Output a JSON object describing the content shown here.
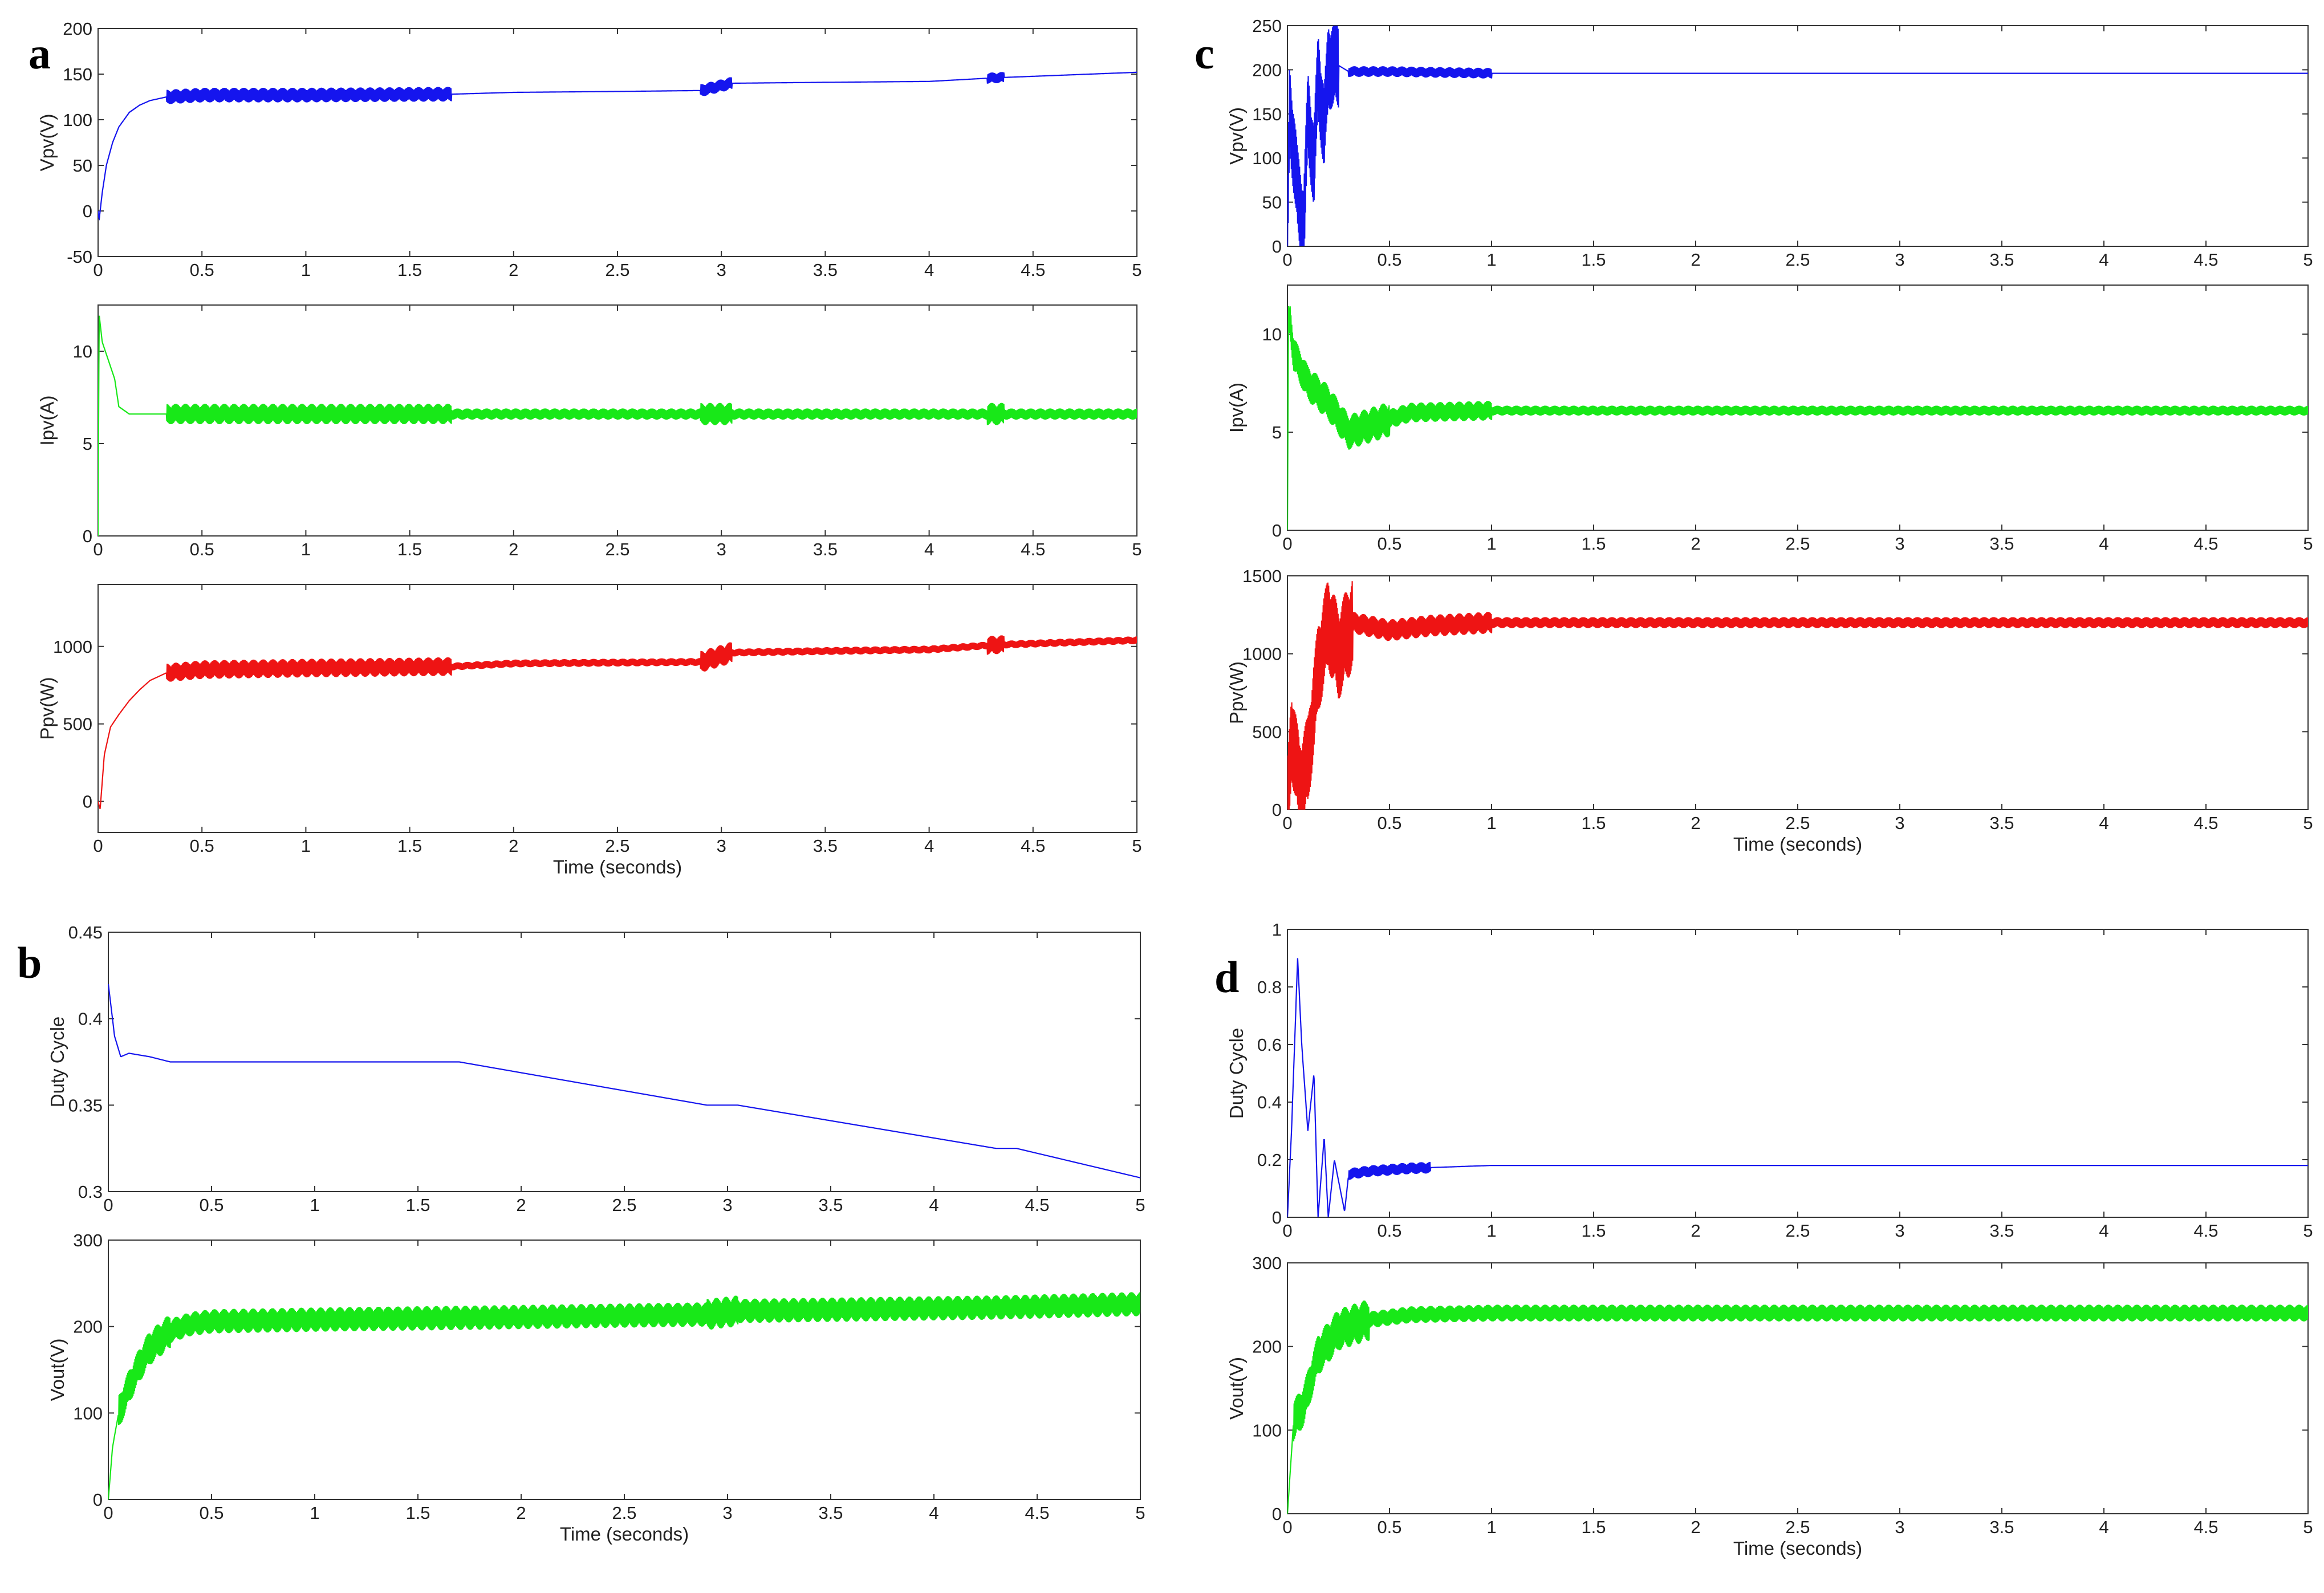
{
  "panel_letters": {
    "a": "a",
    "b": "b",
    "c": "c",
    "d": "d"
  },
  "colors": {
    "blue": "#1515ee",
    "green": "#18e818",
    "red": "#ee1414"
  },
  "chart_data": [
    {
      "id": "a1",
      "panel": "a",
      "type": "line",
      "ylabel": "Vpv(V)",
      "xlabel": "",
      "xlim": [
        0,
        5
      ],
      "ylim": [
        -50,
        200
      ],
      "xticks": [
        "0",
        "0.5",
        "1",
        "1.5",
        "2",
        "2.5",
        "3",
        "3.5",
        "4",
        "4.5",
        "5"
      ],
      "yticks": [
        "-50",
        "0",
        "50",
        "100",
        "150",
        "200"
      ],
      "color": "blue",
      "series": [
        {
          "name": "Vpv",
          "x": [
            0,
            0.005,
            0.02,
            0.04,
            0.07,
            0.1,
            0.15,
            0.2,
            0.25,
            0.33,
            0.5,
            1,
            1.7,
            2,
            2.5,
            2.9,
            3.05,
            3.5,
            4,
            4.32,
            5
          ],
          "y": [
            0,
            -10,
            20,
            50,
            75,
            92,
            108,
            116,
            121,
            125,
            127,
            127,
            128,
            130,
            131,
            132,
            140,
            141,
            142,
            146,
            152
          ]
        }
      ],
      "noise": [
        {
          "x0": 0.33,
          "x1": 1.7,
          "amp": 8
        },
        {
          "x0": 2.9,
          "x1": 3.05,
          "amp": 7
        },
        {
          "x0": 4.28,
          "x1": 4.36,
          "amp": 6
        }
      ]
    },
    {
      "id": "a2",
      "panel": "a",
      "type": "line",
      "ylabel": "Ipv(A)",
      "xlabel": "",
      "xlim": [
        0,
        5
      ],
      "ylim": [
        0,
        12.5
      ],
      "xticks": [
        "0",
        "0.5",
        "1",
        "1.5",
        "2",
        "2.5",
        "3",
        "3.5",
        "4",
        "4.5",
        "5"
      ],
      "yticks": [
        "0",
        "5",
        "10"
      ],
      "color": "green",
      "series": [
        {
          "name": "Ipv",
          "x": [
            0,
            0.005,
            0.02,
            0.05,
            0.08,
            0.1,
            0.15,
            0.3,
            1,
            2,
            3,
            4,
            5
          ],
          "y": [
            0,
            12,
            10.5,
            9.5,
            8.5,
            7,
            6.6,
            6.6,
            6.6,
            6.6,
            6.6,
            6.6,
            6.6
          ]
        }
      ],
      "noise": [
        {
          "x0": 0.33,
          "x1": 1.7,
          "amp": 0.55
        },
        {
          "x0": 1.7,
          "x1": 5,
          "amp": 0.3
        },
        {
          "x0": 2.9,
          "x1": 3.05,
          "amp": 0.6
        },
        {
          "x0": 4.28,
          "x1": 4.36,
          "amp": 0.6
        }
      ]
    },
    {
      "id": "a3",
      "panel": "a",
      "type": "line",
      "ylabel": "Ppv(W)",
      "xlabel": "Time (seconds)",
      "xlim": [
        0,
        5
      ],
      "ylim": [
        -200,
        1400
      ],
      "xticks": [
        "0",
        "0.5",
        "1",
        "1.5",
        "2",
        "2.5",
        "3",
        "3.5",
        "4",
        "4.5",
        "5"
      ],
      "yticks": [
        "0",
        "500",
        "1000"
      ],
      "color": "red",
      "series": [
        {
          "name": "Ppv",
          "x": [
            0,
            0.01,
            0.03,
            0.06,
            0.1,
            0.15,
            0.2,
            0.25,
            0.33,
            0.5,
            1,
            1.7,
            2,
            2.9,
            3.05,
            3.5,
            4,
            4.32,
            5
          ],
          "y": [
            0,
            -50,
            300,
            480,
            560,
            650,
            720,
            780,
            830,
            850,
            860,
            870,
            890,
            900,
            960,
            970,
            980,
            1010,
            1040
          ]
        }
      ],
      "noise": [
        {
          "x0": 0.33,
          "x1": 1.7,
          "amp": 60
        },
        {
          "x0": 1.7,
          "x1": 5,
          "amp": 25
        },
        {
          "x0": 2.9,
          "x1": 3.05,
          "amp": 70
        },
        {
          "x0": 4.28,
          "x1": 4.36,
          "amp": 60
        }
      ]
    },
    {
      "id": "b1",
      "panel": "b",
      "type": "line",
      "ylabel": "Duty Cycle",
      "xlabel": "",
      "xlim": [
        0,
        5
      ],
      "ylim": [
        0.3,
        0.45
      ],
      "xticks": [
        "0",
        "0.5",
        "1",
        "1.5",
        "2",
        "2.5",
        "3",
        "3.5",
        "4",
        "4.5",
        "5"
      ],
      "yticks": [
        "0.3",
        "0.35",
        "0.4",
        "0.45"
      ],
      "color": "blue",
      "series": [
        {
          "name": "Duty Cycle",
          "x": [
            0,
            0.03,
            0.06,
            0.1,
            0.2,
            0.3,
            1.7,
            2.9,
            3.05,
            4.3,
            4.4,
            5
          ],
          "y": [
            0.42,
            0.39,
            0.378,
            0.38,
            0.378,
            0.375,
            0.375,
            0.35,
            0.35,
            0.325,
            0.325,
            0.308
          ]
        }
      ],
      "noise": []
    },
    {
      "id": "b2",
      "panel": "b",
      "type": "line",
      "ylabel": "Vout(V)",
      "xlabel": "Time (seconds)",
      "xlim": [
        0,
        5
      ],
      "ylim": [
        0,
        300
      ],
      "xticks": [
        "0",
        "0.5",
        "1",
        "1.5",
        "2",
        "2.5",
        "3",
        "3.5",
        "4",
        "4.5",
        "5"
      ],
      "yticks": [
        "0",
        "100",
        "200",
        "300"
      ],
      "color": "green",
      "series": [
        {
          "name": "Vout",
          "x": [
            0,
            0.02,
            0.05,
            0.1,
            0.15,
            0.2,
            0.3,
            0.4,
            0.5,
            1,
            1.7,
            2.9,
            3.05,
            4.3,
            5
          ],
          "y": [
            0,
            60,
            100,
            130,
            155,
            175,
            195,
            203,
            206,
            208,
            210,
            214,
            218,
            222,
            226
          ]
        }
      ],
      "noise": [
        {
          "x0": 0.3,
          "x1": 5,
          "amp": 14
        },
        {
          "x0": 0.05,
          "x1": 0.3,
          "amp": 20
        },
        {
          "x0": 2.9,
          "x1": 3.05,
          "amp": 18
        }
      ]
    },
    {
      "id": "c1",
      "panel": "c",
      "type": "line",
      "ylabel": "Vpv(V)",
      "xlabel": "",
      "xlim": [
        0,
        5
      ],
      "ylim": [
        0,
        250
      ],
      "xticks": [
        "0",
        "0.5",
        "1",
        "1.5",
        "2",
        "2.5",
        "3",
        "3.5",
        "4",
        "4.5",
        "5"
      ],
      "yticks": [
        "0",
        "50",
        "100",
        "150",
        "200",
        "250"
      ],
      "color": "blue",
      "series": [
        {
          "name": "Vpv",
          "x": [
            0,
            0.01,
            0.05,
            0.08,
            0.1,
            0.13,
            0.15,
            0.18,
            0.2,
            0.25,
            0.3,
            0.5,
            1,
            5
          ],
          "y": [
            0,
            160,
            60,
            20,
            150,
            90,
            195,
            130,
            205,
            205,
            198,
            198,
            196,
            196
          ]
        }
      ],
      "noise": [
        {
          "x0": 0,
          "x1": 0.25,
          "amp": 50
        },
        {
          "x0": 0.3,
          "x1": 1,
          "amp": 6
        }
      ]
    },
    {
      "id": "c2",
      "panel": "c",
      "type": "line",
      "ylabel": "Ipv(A)",
      "xlabel": "",
      "xlim": [
        0,
        5
      ],
      "ylim": [
        0,
        12.5
      ],
      "xticks": [
        "0",
        "0.5",
        "1",
        "1.5",
        "2",
        "2.5",
        "3",
        "3.5",
        "4",
        "4.5",
        "5"
      ],
      "yticks": [
        "0",
        "5",
        "10"
      ],
      "color": "green",
      "series": [
        {
          "name": "Ipv",
          "x": [
            0,
            0.005,
            0.03,
            0.1,
            0.2,
            0.3,
            0.45,
            0.6,
            1,
            5
          ],
          "y": [
            0,
            11.5,
            9,
            7.5,
            6.5,
            5,
            5.5,
            6,
            6.1,
            6.1
          ]
        }
      ],
      "noise": [
        {
          "x0": 0.01,
          "x1": 0.5,
          "amp": 0.9
        },
        {
          "x0": 0.5,
          "x1": 1,
          "amp": 0.5
        },
        {
          "x0": 1,
          "x1": 5,
          "amp": 0.25
        }
      ]
    },
    {
      "id": "c3",
      "panel": "c",
      "type": "line",
      "ylabel": "Ppv(W)",
      "xlabel": "Time (seconds)",
      "xlim": [
        0,
        5
      ],
      "ylim": [
        0,
        1500
      ],
      "xticks": [
        "0",
        "0.5",
        "1",
        "1.5",
        "2",
        "2.5",
        "3",
        "3.5",
        "4",
        "4.5",
        "5"
      ],
      "yticks": [
        "0",
        "500",
        "1000",
        "1500"
      ],
      "color": "red",
      "series": [
        {
          "name": "Ppv",
          "x": [
            0,
            0.02,
            0.06,
            0.1,
            0.15,
            0.2,
            0.25,
            0.32,
            0.5,
            0.7,
            1,
            5
          ],
          "y": [
            0,
            500,
            150,
            300,
            900,
            1200,
            1000,
            1200,
            1150,
            1180,
            1200,
            1200
          ]
        }
      ],
      "noise": [
        {
          "x0": 0,
          "x1": 0.32,
          "amp": 300
        },
        {
          "x0": 0.32,
          "x1": 1,
          "amp": 70
        },
        {
          "x0": 1,
          "x1": 5,
          "amp": 35
        }
      ]
    },
    {
      "id": "d1",
      "panel": "d",
      "type": "line",
      "ylabel": "Duty Cycle",
      "xlabel": "",
      "xlim": [
        0,
        5
      ],
      "ylim": [
        0,
        1
      ],
      "xticks": [
        "0",
        "0.5",
        "1",
        "1.5",
        "2",
        "2.5",
        "3",
        "3.5",
        "4",
        "4.5",
        "5"
      ],
      "yticks": [
        "0",
        "0.2",
        "0.4",
        "0.6",
        "0.8",
        "1"
      ],
      "color": "blue",
      "series": [
        {
          "name": "Duty Cycle",
          "x": [
            0,
            0.02,
            0.05,
            0.07,
            0.1,
            0.13,
            0.15,
            0.18,
            0.2,
            0.23,
            0.28,
            0.3,
            0.4,
            0.6,
            1,
            5
          ],
          "y": [
            0,
            0.3,
            0.9,
            0.6,
            0.3,
            0.5,
            0,
            0.28,
            0,
            0.2,
            0.02,
            0.15,
            0.16,
            0.17,
            0.18,
            0.18
          ]
        }
      ],
      "noise": [
        {
          "x0": 0.3,
          "x1": 0.7,
          "amp": 0.02
        }
      ]
    },
    {
      "id": "d2",
      "panel": "d",
      "type": "line",
      "ylabel": "Vout(V)",
      "xlabel": "Time (seconds)",
      "xlim": [
        0,
        5
      ],
      "ylim": [
        0,
        300
      ],
      "xticks": [
        "0",
        "0.5",
        "1",
        "1.5",
        "2",
        "2.5",
        "3",
        "3.5",
        "4",
        "4.5",
        "5"
      ],
      "yticks": [
        "0",
        "100",
        "200",
        "300"
      ],
      "color": "green",
      "series": [
        {
          "name": "Vout",
          "x": [
            0,
            0.03,
            0.08,
            0.15,
            0.25,
            0.4,
            0.6,
            1,
            5
          ],
          "y": [
            0,
            110,
            130,
            190,
            220,
            232,
            238,
            240,
            240
          ]
        }
      ],
      "noise": [
        {
          "x0": 0.03,
          "x1": 0.4,
          "amp": 25
        },
        {
          "x0": 0.4,
          "x1": 5,
          "amp": 10
        }
      ]
    }
  ]
}
